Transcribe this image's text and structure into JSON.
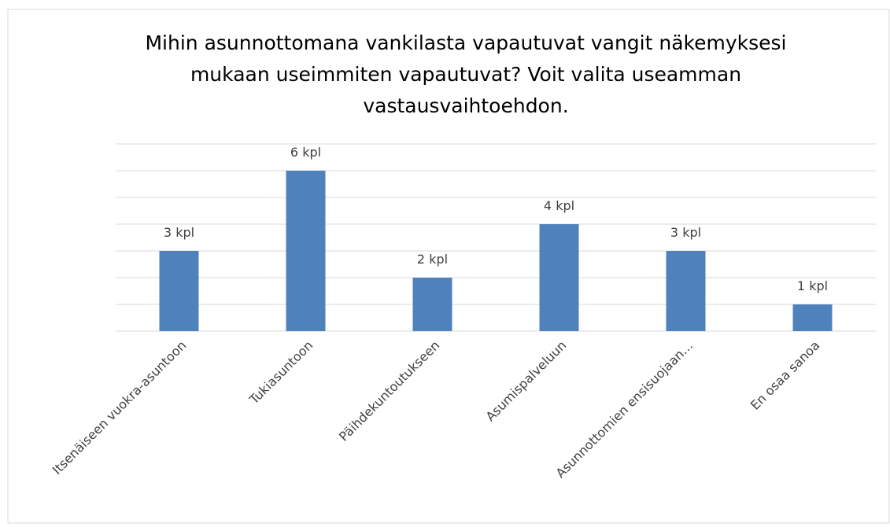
{
  "chart_data": {
    "type": "bar",
    "title": [
      "Mihin asunnottomana vankilasta vapautuvat vangit näkemyksesi",
      "mukaan useimmiten vapautuvat? Voit valita useamman",
      "vastausvaihtoehdon."
    ],
    "categories": [
      "Itsenäiseen vuokra-asuntoon",
      "Tukiasuntoon",
      "Päihdekuntoutukseen",
      "Asumispalveluun",
      "Asunnottomien ensisuojaan…",
      "En osaa sanoa"
    ],
    "values": [
      3,
      6,
      2,
      4,
      3,
      1
    ],
    "value_labels": [
      "3 kpl",
      "6 kpl",
      "2 kpl",
      "4 kpl",
      "3 kpl",
      "1 kpl"
    ],
    "color": "#4f81bd",
    "ylim": [
      0,
      7
    ],
    "yticks": [
      0,
      1,
      2,
      3,
      4,
      5,
      6,
      7
    ],
    "grid": true
  }
}
